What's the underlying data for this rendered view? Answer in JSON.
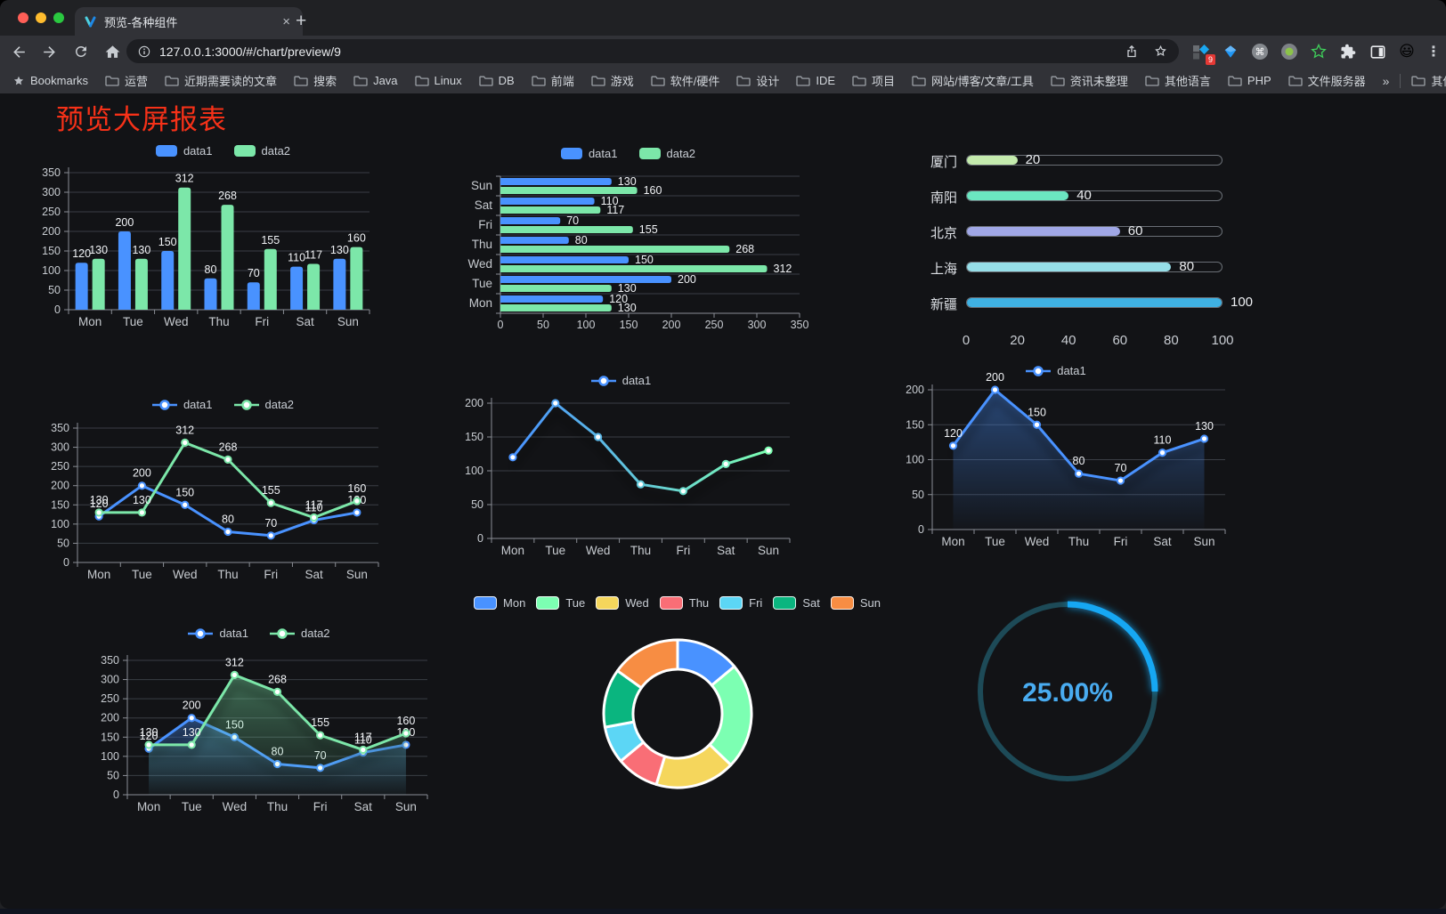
{
  "browser": {
    "tab_title": "预览-各种组件",
    "url": "127.0.0.1:3000/#/chart/preview/9",
    "bookmarks_label": "Bookmarks",
    "bookmarks": [
      "运营",
      "近期需要读的文章",
      "搜索",
      "Java",
      "Linux",
      "DB",
      "前端",
      "游戏",
      "软件/硬件",
      "设计",
      "IDE",
      "项目",
      "网站/博客/文章/工具",
      "资讯未整理",
      "其他语言",
      "PHP",
      "文件服务器"
    ],
    "bookmarks_overflow": "»",
    "other_bookmarks": "其他书签",
    "extension_badge": "9"
  },
  "page": {
    "title": "预览大屏报表",
    "title_color": "#f63118"
  },
  "chart_data": [
    {
      "id": "bar-vertical",
      "type": "bar",
      "categories": [
        "Mon",
        "Tue",
        "Wed",
        "Thu",
        "Fri",
        "Sat",
        "Sun"
      ],
      "series": [
        {
          "name": "data1",
          "color": "#4992ff",
          "values": [
            120,
            200,
            150,
            80,
            70,
            110,
            130
          ]
        },
        {
          "name": "data2",
          "color": "#7ce7a9",
          "values": [
            130,
            130,
            312,
            268,
            155,
            117,
            160
          ]
        }
      ],
      "ylim": [
        0,
        350
      ],
      "yticks": [
        0,
        50,
        100,
        150,
        200,
        250,
        300,
        350
      ],
      "legend_position": "top",
      "labels": true,
      "grid": true
    },
    {
      "id": "bar-horizontal",
      "type": "bar-h",
      "categories": [
        "Mon",
        "Tue",
        "Wed",
        "Thu",
        "Fri",
        "Sat",
        "Sun"
      ],
      "series": [
        {
          "name": "data1",
          "color": "#4992ff",
          "values": [
            120,
            200,
            150,
            80,
            70,
            110,
            130
          ]
        },
        {
          "name": "data2",
          "color": "#7ce7a9",
          "values": [
            130,
            130,
            312,
            268,
            155,
            117,
            160
          ]
        }
      ],
      "xlim": [
        0,
        350
      ],
      "xticks": [
        0,
        50,
        100,
        150,
        200,
        250,
        300,
        350
      ],
      "legend_position": "top",
      "labels": true,
      "grid": true
    },
    {
      "id": "progress",
      "type": "progress",
      "items": [
        {
          "label": "厦门",
          "value": 20,
          "color": "#c4ebad"
        },
        {
          "label": "南阳",
          "value": 40,
          "color": "#6be6c1"
        },
        {
          "label": "北京",
          "value": 60,
          "color": "#a0a7e6"
        },
        {
          "label": "上海",
          "value": 80,
          "color": "#96dee8"
        },
        {
          "label": "新疆",
          "value": 100,
          "color": "#3fb1e3"
        }
      ],
      "xlim": [
        0,
        100
      ],
      "xticks": [
        0,
        20,
        40,
        60,
        80,
        100
      ]
    },
    {
      "id": "line-basic",
      "type": "line",
      "categories": [
        "Mon",
        "Tue",
        "Wed",
        "Thu",
        "Fri",
        "Sat",
        "Sun"
      ],
      "series": [
        {
          "name": "data1",
          "color": "#4992ff",
          "values": [
            120,
            200,
            150,
            80,
            70,
            110,
            130
          ]
        },
        {
          "name": "data2",
          "color": "#7ce7a9",
          "values": [
            130,
            130,
            312,
            268,
            155,
            117,
            160
          ]
        }
      ],
      "ylim": [
        0,
        350
      ],
      "yticks": [
        0,
        50,
        100,
        150,
        200,
        250,
        300,
        350
      ],
      "legend_position": "top",
      "labels": true,
      "grid": true
    },
    {
      "id": "line-gradient",
      "type": "line",
      "categories": [
        "Mon",
        "Tue",
        "Wed",
        "Thu",
        "Fri",
        "Sat",
        "Sun"
      ],
      "series": [
        {
          "name": "data1",
          "gradient": [
            "#4992ff",
            "#7cffb2"
          ],
          "values": [
            120,
            200,
            150,
            80,
            70,
            110,
            130
          ]
        }
      ],
      "ylim": [
        0,
        200
      ],
      "yticks": [
        0,
        50,
        100,
        150,
        200
      ],
      "legend_position": "top",
      "labels": false,
      "shadow": true,
      "grid": true
    },
    {
      "id": "line-area",
      "type": "line",
      "categories": [
        "Mon",
        "Tue",
        "Wed",
        "Thu",
        "Fri",
        "Sat",
        "Sun"
      ],
      "series": [
        {
          "name": "data1",
          "color": "#4992ff",
          "area": true,
          "values": [
            120,
            200,
            150,
            80,
            70,
            110,
            130
          ]
        }
      ],
      "ylim": [
        0,
        200
      ],
      "yticks": [
        0,
        50,
        100,
        150,
        200
      ],
      "legend_position": "top",
      "labels": true,
      "shadow": true,
      "grid": true
    },
    {
      "id": "line-area-double",
      "type": "line",
      "categories": [
        "Mon",
        "Tue",
        "Wed",
        "Thu",
        "Fri",
        "Sat",
        "Sun"
      ],
      "series": [
        {
          "name": "data1",
          "color": "#4992ff",
          "area": true,
          "values": [
            120,
            200,
            150,
            80,
            70,
            110,
            130
          ]
        },
        {
          "name": "data2",
          "color": "#7ce7a9",
          "area": true,
          "values": [
            130,
            130,
            312,
            268,
            155,
            117,
            160
          ]
        }
      ],
      "ylim": [
        0,
        350
      ],
      "yticks": [
        0,
        50,
        100,
        150,
        200,
        250,
        300,
        350
      ],
      "legend_position": "top",
      "labels": true,
      "shadow": true,
      "grid": true
    },
    {
      "id": "donut",
      "type": "pie",
      "inner_radius_ratio": 0.6,
      "legend_position": "top",
      "items": [
        {
          "name": "Mon",
          "value": 120,
          "color": "#4992ff"
        },
        {
          "name": "Tue",
          "value": 200,
          "color": "#7cffb2"
        },
        {
          "name": "Wed",
          "value": 150,
          "color": "#f5d65c"
        },
        {
          "name": "Thu",
          "value": 80,
          "color": "#f96e76"
        },
        {
          "name": "Fri",
          "value": 70,
          "color": "#5cd6f5"
        },
        {
          "name": "Sat",
          "value": 110,
          "color": "#0ab57f"
        },
        {
          "name": "Sun",
          "value": 130,
          "color": "#f78d43"
        }
      ]
    },
    {
      "id": "ring",
      "type": "ring",
      "value": 25,
      "label": "25.00%",
      "arc_color": "#17a7f3",
      "track_color": "#1d4a57",
      "text_color": "#49acf1"
    }
  ]
}
